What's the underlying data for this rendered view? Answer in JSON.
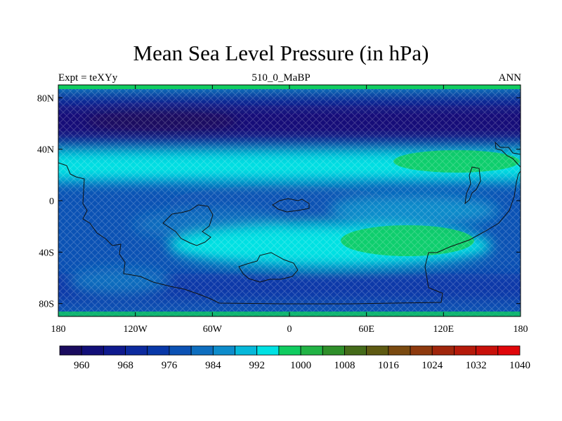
{
  "title": "Mean Sea Level Pressure (in hPa)",
  "subtitle_left": "Expt = teXYy",
  "subtitle_center": "510_0_MaBP",
  "subtitle_right": "ANN",
  "y_ticks": [
    "80N",
    "40N",
    "0",
    "40S",
    "80S"
  ],
  "x_ticks": [
    "180",
    "120W",
    "60W",
    "0",
    "60E",
    "120E",
    "180"
  ],
  "colorbar": {
    "labels": [
      "960",
      "968",
      "976",
      "984",
      "992",
      "1000",
      "1008",
      "1016",
      "1024",
      "1032",
      "1040"
    ],
    "colors": [
      "#1a0b5e",
      "#120f78",
      "#0f1a8e",
      "#0c2a9e",
      "#0838a8",
      "#0b52b4",
      "#0e6ebf",
      "#0d8ccb",
      "#06b8da",
      "#00e1e3",
      "#10cc60",
      "#22b345",
      "#2f8f2a",
      "#456b1a",
      "#5e5a12",
      "#7a4a10",
      "#8e3a0e",
      "#a0260c",
      "#b51a0a",
      "#c8100a",
      "#e0060a"
    ]
  },
  "chart_data": {
    "type": "heatmap",
    "title": "Mean Sea Level Pressure (in hPa)",
    "units": "hPa",
    "xlim": [
      -180,
      180
    ],
    "ylim": [
      -90,
      90
    ],
    "levels": [
      960,
      964,
      968,
      972,
      976,
      980,
      984,
      988,
      992,
      996,
      1000,
      1004,
      1008,
      1012,
      1016,
      1020,
      1024,
      1028,
      1032,
      1036,
      1040
    ],
    "regions": [
      {
        "region": "northern high latitudes (70N-85N)",
        "approx_hPa": 962
      },
      {
        "region": "northern mid latitudes (50N-65N)",
        "approx_hPa": 964
      },
      {
        "region": "northern subtropics (20N-40N)",
        "approx_hPa": 1000
      },
      {
        "region": "equatorial belt",
        "approx_hPa": 996
      },
      {
        "region": "northern subtropical high (60E-170E, 25N-40N)",
        "approx_hPa": 1008
      },
      {
        "region": "southern subtropical high (50E-140E, 25S-45S)",
        "approx_hPa": 1008
      },
      {
        "region": "southern mid latitudes (50S-70S)",
        "approx_hPa": 984
      },
      {
        "region": "south polar (80S-90S)",
        "approx_hPa": 990
      }
    ]
  }
}
